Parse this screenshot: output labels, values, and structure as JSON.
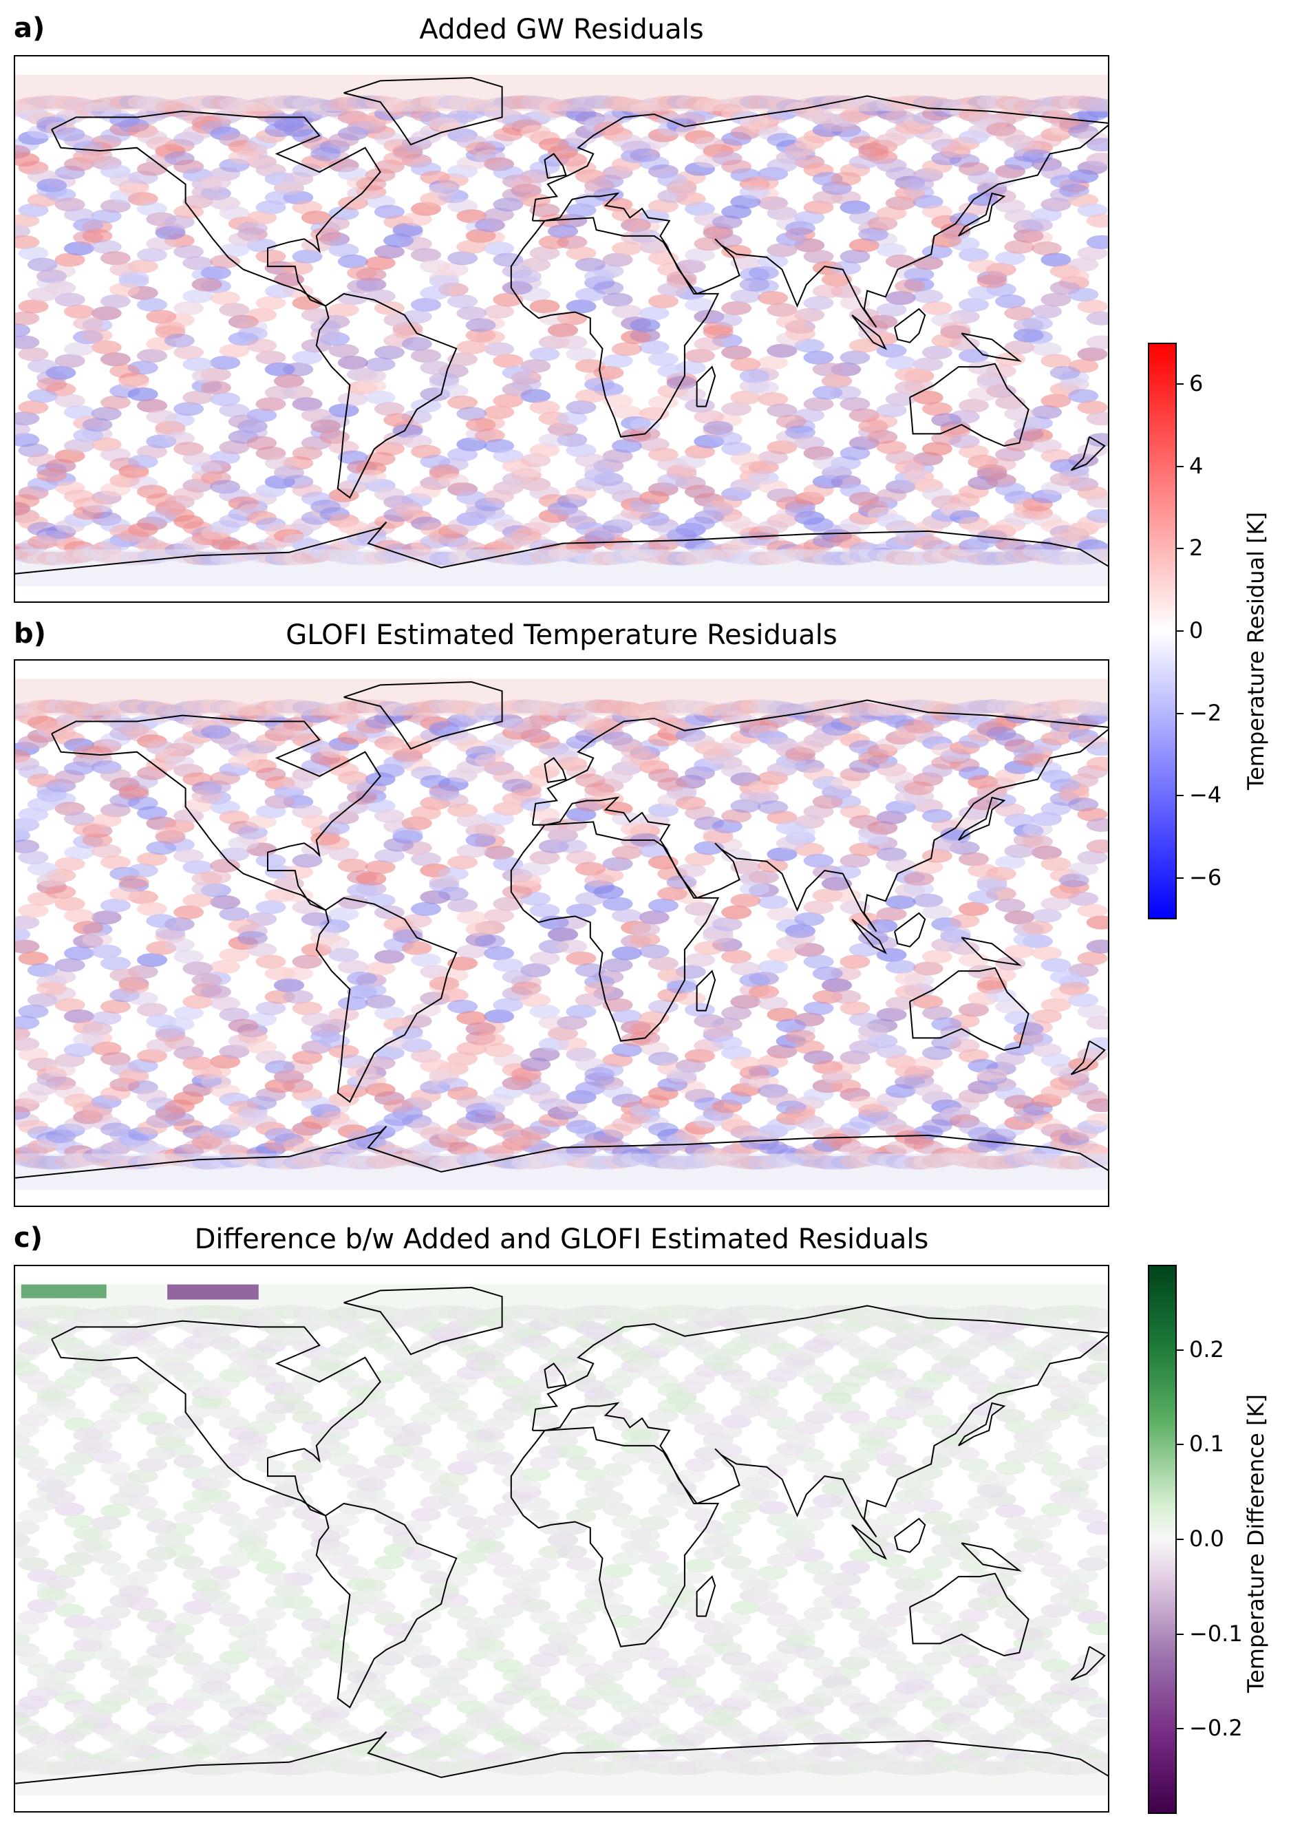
{
  "panels": [
    {
      "letter": "a)",
      "title": "Added GW Residuals",
      "colormap": "bwr",
      "colors": {
        "low": "#0000ff",
        "mid": "#ffffff",
        "high": "#ff0000"
      }
    },
    {
      "letter": "b)",
      "title": "GLOFI Estimated Temperature Residuals",
      "colormap": "bwr",
      "colors": {
        "low": "#0000ff",
        "mid": "#ffffff",
        "high": "#ff0000"
      }
    },
    {
      "letter": "c)",
      "title": "Difference b/w Added and GLOFI Estimated Residuals",
      "colormap": "PRGn",
      "colors": {
        "low": "#40004b",
        "mid": "#f7f7f7",
        "high": "#00441b"
      }
    }
  ],
  "colorbar_residual": {
    "label": "Temperature Residual [K]",
    "range": [
      -7,
      7
    ],
    "ticks": [
      "6",
      "4",
      "2",
      "0",
      "−2",
      "−4",
      "−6"
    ],
    "tick_values": [
      6,
      4,
      2,
      0,
      -2,
      -4,
      -6
    ]
  },
  "colorbar_difference": {
    "label": "Temperature Difference [K]",
    "range": [
      -0.29,
      0.29
    ],
    "ticks": [
      "0.2",
      "0.1",
      "0.0",
      "−0.1",
      "−0.2"
    ],
    "tick_values": [
      0.2,
      0.1,
      0.0,
      -0.1,
      -0.2
    ]
  },
  "chart_data": [
    {
      "type": "heatmap",
      "title": "Added GW Residuals",
      "projection": "PlateCarree",
      "xlim": [
        -180,
        180
      ],
      "ylim": [
        -90,
        90
      ],
      "colorbar_label": "Temperature Residual [K]",
      "value_range": [
        -7,
        7
      ],
      "description_of_marks": "satellite swath bands of temperature residual over coastline map"
    },
    {
      "type": "heatmap",
      "title": "GLOFI Estimated Temperature Residuals",
      "projection": "PlateCarree",
      "xlim": [
        -180,
        180
      ],
      "ylim": [
        -90,
        90
      ],
      "colorbar_label": "Temperature Residual [K]",
      "value_range": [
        -7,
        7
      ]
    },
    {
      "type": "heatmap",
      "title": "Difference b/w Added and GLOFI Estimated Residuals",
      "projection": "PlateCarree",
      "xlim": [
        -180,
        180
      ],
      "ylim": [
        -90,
        90
      ],
      "colorbar_label": "Temperature Difference [K]",
      "value_range": [
        -0.29,
        0.29
      ]
    }
  ]
}
